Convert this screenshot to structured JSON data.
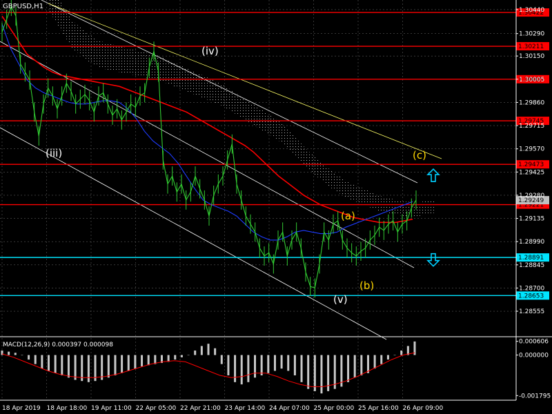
{
  "header": {
    "symbol_label": "GBPUSD,H1"
  },
  "macd_panel": {
    "label": "MACD(12,26,9) 0.000397 0.000098"
  },
  "colors": {
    "background": "#000000",
    "grid": "#5a5a5a",
    "price_line": "#32cd32",
    "ma_red": "#ff0000",
    "ma_blue": "#1e3cff",
    "resistance": "#ff0000",
    "support": "#00e5ff",
    "channel": "#ffffff",
    "trendline": "#ffff66",
    "cloud": "#bdbdbd",
    "wave_white": "#ffffff",
    "wave_yellow": "#ffd700",
    "arrow": "#00cfff",
    "macd_hist": "#c8c8c8",
    "macd_signal": "#ff0000"
  },
  "chart_data": {
    "type": "line",
    "symbol": "GBPUSD",
    "timeframe": "H1",
    "grid": true,
    "ylim": [
      1.284,
      1.305
    ],
    "y_ticks": [
      "1.30440",
      "1.30290",
      "1.30150",
      "1.30005",
      "1.29860",
      "1.29715",
      "1.29570",
      "1.29425",
      "1.29280",
      "1.29135",
      "1.28990",
      "1.28845",
      "1.28700",
      "1.28555"
    ],
    "x_ticks": [
      "18 Apr 2019",
      "18 Apr 18:00",
      "19 Apr 11:00",
      "22 Apr 05:00",
      "22 Apr 21:00",
      "23 Apr 14:00",
      "24 Apr 07:00",
      "25 Apr 00:00",
      "25 Apr 16:00",
      "26 Apr 09:00"
    ],
    "price_series": {
      "x": [
        0,
        2,
        4,
        6,
        8,
        10,
        12,
        14,
        16,
        18,
        20,
        22,
        24,
        26,
        28,
        30,
        32,
        34,
        36,
        38,
        40,
        42,
        44,
        46,
        48,
        50,
        52,
        54,
        56,
        58,
        60,
        62,
        64,
        66,
        68,
        70,
        72,
        74,
        76,
        78,
        80,
        82,
        84,
        86,
        88,
        90,
        92,
        94,
        96,
        98,
        100,
        102,
        104,
        106,
        108,
        110,
        112,
        114,
        116,
        118,
        120,
        122,
        124,
        126,
        128,
        130,
        132,
        134,
        136,
        138,
        140,
        142,
        144,
        146,
        148,
        150,
        152,
        154,
        156,
        158,
        160,
        162,
        164,
        166,
        168,
        170,
        172,
        174,
        176,
        178,
        180
      ],
      "close": [
        1.303,
        1.3038,
        1.3046,
        1.304,
        1.301,
        1.3005,
        1.3,
        1.298,
        1.2965,
        1.2985,
        1.2995,
        1.299,
        1.2982,
        1.299,
        1.2998,
        1.2993,
        1.2985,
        1.2988,
        1.2991,
        1.2987,
        1.298,
        1.299,
        1.2992,
        1.2985,
        1.2978,
        1.2982,
        1.2975,
        1.298,
        1.2985,
        1.2983,
        1.299,
        1.2992,
        1.3008,
        1.3018,
        1.3005,
        1.295,
        1.2935,
        1.294,
        1.293,
        1.2935,
        1.2925,
        1.293,
        1.294,
        1.2932,
        1.2925,
        1.2915,
        1.2928,
        1.2935,
        1.294,
        1.295,
        1.296,
        1.2935,
        1.2925,
        1.2915,
        1.291,
        1.2905,
        1.2895,
        1.289,
        1.2892,
        1.2885,
        1.29,
        1.2905,
        1.289,
        1.29,
        1.2905,
        1.2895,
        1.288,
        1.2871,
        1.287,
        1.2885,
        1.2905,
        1.29,
        1.291,
        1.2912,
        1.29,
        1.2895,
        1.2892,
        1.289,
        1.2893,
        1.2895,
        1.29,
        1.2903,
        1.2908,
        1.2906,
        1.291,
        1.2912,
        1.2905,
        1.291,
        1.2912,
        1.292,
        1.2925
      ]
    },
    "moving_averages": [
      {
        "color": "red",
        "values": [
          1.304,
          1.3032,
          1.3024,
          1.3016,
          1.3012,
          1.3008,
          1.3005,
          1.3003,
          1.3002,
          1.3001,
          1.3,
          1.2999,
          1.2998,
          1.2997,
          1.2996,
          1.2994,
          1.2992,
          1.299,
          1.2988,
          1.2986,
          1.2984,
          1.2982,
          1.298,
          1.2977,
          1.2974,
          1.2971,
          1.2968,
          1.2965,
          1.2962,
          1.2959,
          1.2955,
          1.295,
          1.2945,
          1.294,
          1.2936,
          1.2932,
          1.2928,
          1.2925,
          1.2922,
          1.292,
          1.2918,
          1.2916,
          1.2914,
          1.2913,
          1.2912,
          1.2911,
          1.2911,
          1.2911,
          1.2912,
          1.2913
        ]
      },
      {
        "color": "blue",
        "values": [
          1.3035,
          1.302,
          1.301,
          1.3,
          1.2995,
          1.2992,
          1.299,
          1.2988,
          1.2986,
          1.2985,
          1.2985,
          1.2986,
          1.2987,
          1.2987,
          1.2986,
          1.2982,
          1.2976,
          1.2968,
          1.2962,
          1.2958,
          1.2954,
          1.2948,
          1.294,
          1.2932,
          1.2925,
          1.2922,
          1.292,
          1.2918,
          1.2915,
          1.291,
          1.2905,
          1.2902,
          1.29,
          1.29,
          1.2902,
          1.2905,
          1.2906,
          1.2905,
          1.2904,
          1.2904,
          1.2905,
          1.2908,
          1.291,
          1.2912,
          1.2914,
          1.2916,
          1.2918,
          1.292,
          1.2922,
          1.2924
        ]
      }
    ],
    "resistance_levels": [
      "1.30422",
      "1.30211",
      "1.30005",
      "1.29745",
      "1.29473",
      "1.29221"
    ],
    "support_levels": [
      "1.28891",
      "1.28653"
    ],
    "current_price_label": "1.29249",
    "wave_labels": [
      {
        "text": "(iii)",
        "color": "white"
      },
      {
        "text": "(iv)",
        "color": "white"
      },
      {
        "text": "(v)",
        "color": "white"
      },
      {
        "text": "(a)",
        "color": "yellow"
      },
      {
        "text": "(b)",
        "color": "yellow"
      },
      {
        "text": "(c)",
        "color": "yellow"
      }
    ],
    "signal_arrows": [
      {
        "direction": "up",
        "level": 1.294
      },
      {
        "direction": "down",
        "level": 1.2888
      }
    ],
    "macd": {
      "ticks": [
        "0.000606",
        "0.000000",
        "-0.001795"
      ],
      "ylim": [
        -0.002,
        0.00075
      ],
      "histogram": [
        0.0002,
        0.00015,
        0.0001,
        0.0,
        -0.0002,
        -0.0004,
        -0.0006,
        -0.0007,
        -0.0008,
        -0.0009,
        -0.001,
        -0.0011,
        -0.00115,
        -0.0012,
        -0.00115,
        -0.0011,
        -0.001,
        -0.0009,
        -0.0008,
        -0.0007,
        -0.0006,
        -0.0005,
        -0.00045,
        -0.0004,
        -0.00035,
        -0.0003,
        -0.0002,
        -0.0001,
        0.0,
        0.0002,
        0.0004,
        0.0005,
        0.0003,
        -0.0004,
        -0.0009,
        -0.0012,
        -0.0013,
        -0.0012,
        -0.001,
        -0.0009,
        -0.0008,
        -0.0007,
        -0.0006,
        -0.0007,
        -0.0009,
        -0.0012,
        -0.0015,
        -0.0016,
        -0.0017,
        -0.0016,
        -0.0015,
        -0.0014,
        -0.0012,
        -0.001,
        -0.0009,
        -0.0008,
        -0.0006,
        -0.0004,
        -0.0002,
        0.0,
        0.0002,
        0.0004,
        0.0006
      ],
      "signal": [
        5e-05,
        -0.0001,
        -0.0003,
        -0.0005,
        -0.0007,
        -0.00085,
        -0.00095,
        -0.001,
        -0.001,
        -0.00095,
        -0.00085,
        -0.0007,
        -0.00055,
        -0.0004,
        -0.0003,
        -0.00025,
        -0.0003,
        -0.0005,
        -0.0007,
        -0.0009,
        -0.001,
        -0.00095,
        -0.0008,
        -0.0008,
        -0.00095,
        -0.00115,
        -0.0013,
        -0.0014,
        -0.0014,
        -0.0013,
        -0.00115,
        -0.00095,
        -0.0007,
        -0.00045,
        -0.0002,
        0.0,
        0.0001
      ]
    }
  }
}
